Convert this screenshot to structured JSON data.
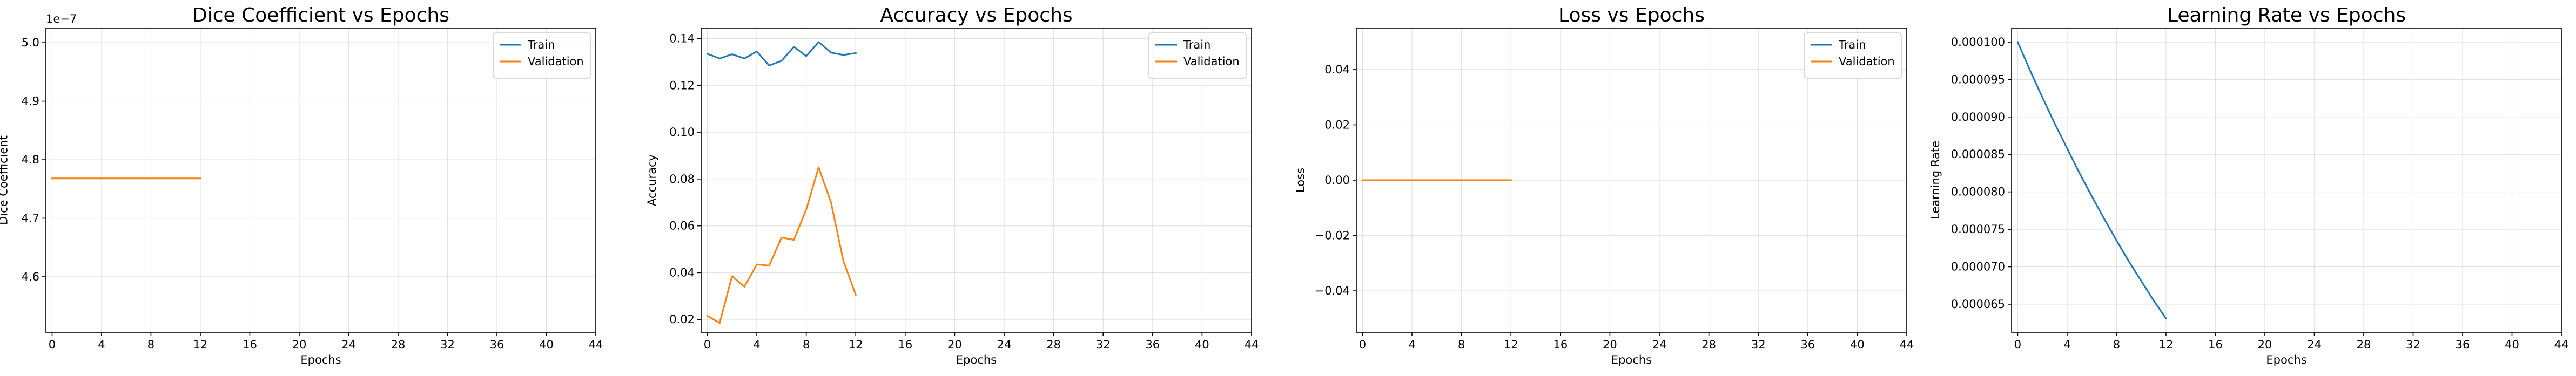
{
  "chart_data": [
    {
      "type": "line",
      "title": "Dice Coefficient vs Epochs",
      "xlabel": "Epochs",
      "ylabel": "Dice Coefficient",
      "offset_text": "1e−7",
      "xlim": [
        -0.5,
        44
      ],
      "ylim": [
        4.505,
        5.025
      ],
      "xticks": [
        0,
        4,
        8,
        12,
        16,
        20,
        24,
        28,
        32,
        36,
        40,
        44
      ],
      "yticks": [
        4.6,
        4.7,
        4.8,
        4.9,
        5.0
      ],
      "ytick_labels": [
        "4.6",
        "4.7",
        "4.8",
        "4.9",
        "5.0"
      ],
      "grid": true,
      "legend": "top-right",
      "series": [
        {
          "name": "Train",
          "color": "#1f77b4",
          "x": [],
          "y": []
        },
        {
          "name": "Validation",
          "color": "#ff7f0e",
          "x": [
            0,
            1,
            2,
            3,
            4,
            5,
            6,
            7,
            8,
            9,
            10,
            11,
            12
          ],
          "y": [
            4.768,
            4.768,
            4.768,
            4.768,
            4.768,
            4.768,
            4.768,
            4.768,
            4.768,
            4.768,
            4.768,
            4.768,
            4.768
          ]
        }
      ]
    },
    {
      "type": "line",
      "title": "Accuracy vs Epochs",
      "xlabel": "Epochs",
      "ylabel": "Accuracy",
      "xlim": [
        -0.5,
        44
      ],
      "ylim": [
        0.0145,
        0.1445
      ],
      "xticks": [
        0,
        4,
        8,
        12,
        16,
        20,
        24,
        28,
        32,
        36,
        40,
        44
      ],
      "yticks": [
        0.02,
        0.04,
        0.06,
        0.08,
        0.1,
        0.12,
        0.14
      ],
      "ytick_labels": [
        "0.02",
        "0.04",
        "0.06",
        "0.08",
        "0.10",
        "0.12",
        "0.14"
      ],
      "grid": true,
      "legend": "top-right",
      "series": [
        {
          "name": "Train",
          "color": "#1f77b4",
          "x": [
            0,
            1,
            2,
            3,
            4,
            5,
            6,
            7,
            8,
            9,
            10,
            11,
            12
          ],
          "y": [
            0.1335,
            0.1315,
            0.1333,
            0.1315,
            0.1345,
            0.1285,
            0.1305,
            0.1365,
            0.1325,
            0.1385,
            0.134,
            0.133,
            0.1338
          ]
        },
        {
          "name": "Validation",
          "color": "#ff7f0e",
          "x": [
            0,
            1,
            2,
            3,
            4,
            5,
            6,
            7,
            8,
            9,
            10,
            11,
            12
          ],
          "y": [
            0.0215,
            0.0185,
            0.0385,
            0.034,
            0.0435,
            0.043,
            0.055,
            0.054,
            0.067,
            0.085,
            0.07,
            0.045,
            0.0305
          ]
        }
      ]
    },
    {
      "type": "line",
      "title": "Loss vs Epochs",
      "xlabel": "Epochs",
      "ylabel": "Loss",
      "xlim": [
        -0.5,
        44
      ],
      "ylim": [
        -0.055,
        0.055
      ],
      "xticks": [
        0,
        4,
        8,
        12,
        16,
        20,
        24,
        28,
        32,
        36,
        40,
        44
      ],
      "yticks": [
        -0.04,
        -0.02,
        0.0,
        0.02,
        0.04
      ],
      "ytick_labels": [
        "−0.04",
        "−0.02",
        "0.00",
        "0.02",
        "0.04"
      ],
      "grid": true,
      "legend": "top-right",
      "series": [
        {
          "name": "Train",
          "color": "#1f77b4",
          "x": [],
          "y": []
        },
        {
          "name": "Validation",
          "color": "#ff7f0e",
          "x": [
            0,
            1,
            2,
            3,
            4,
            5,
            6,
            7,
            8,
            9,
            10,
            11,
            12
          ],
          "y": [
            0,
            0,
            0,
            0,
            0,
            0,
            0,
            0,
            0,
            0,
            0,
            0,
            0
          ]
        }
      ]
    },
    {
      "type": "line",
      "title": "Learning Rate vs Epochs",
      "xlabel": "Epochs",
      "ylabel": "Learning Rate",
      "xlim": [
        -0.5,
        44
      ],
      "ylim": [
        6.125e-05,
        0.00010187
      ],
      "xticks": [
        0,
        4,
        8,
        12,
        16,
        20,
        24,
        28,
        32,
        36,
        40,
        44
      ],
      "yticks": [
        6.5e-05,
        7e-05,
        7.5e-05,
        8e-05,
        8.5e-05,
        9e-05,
        9.5e-05,
        0.0001
      ],
      "ytick_labels": [
        "0.000065",
        "0.000070",
        "0.000075",
        "0.000080",
        "0.000085",
        "0.000090",
        "0.000095",
        "0.000100"
      ],
      "grid": true,
      "legend": "none",
      "series": [
        {
          "color": "#1f77b4",
          "x": [
            0,
            1,
            2,
            3,
            4,
            5,
            6,
            7,
            8,
            9,
            10,
            11,
            12
          ],
          "y": [
            0.0001,
            9.62e-05,
            9.26e-05,
            8.91e-05,
            8.58e-05,
            8.25e-05,
            7.94e-05,
            7.64e-05,
            7.35e-05,
            7.07e-05,
            6.81e-05,
            6.55e-05,
            6.31e-05
          ]
        }
      ]
    }
  ]
}
